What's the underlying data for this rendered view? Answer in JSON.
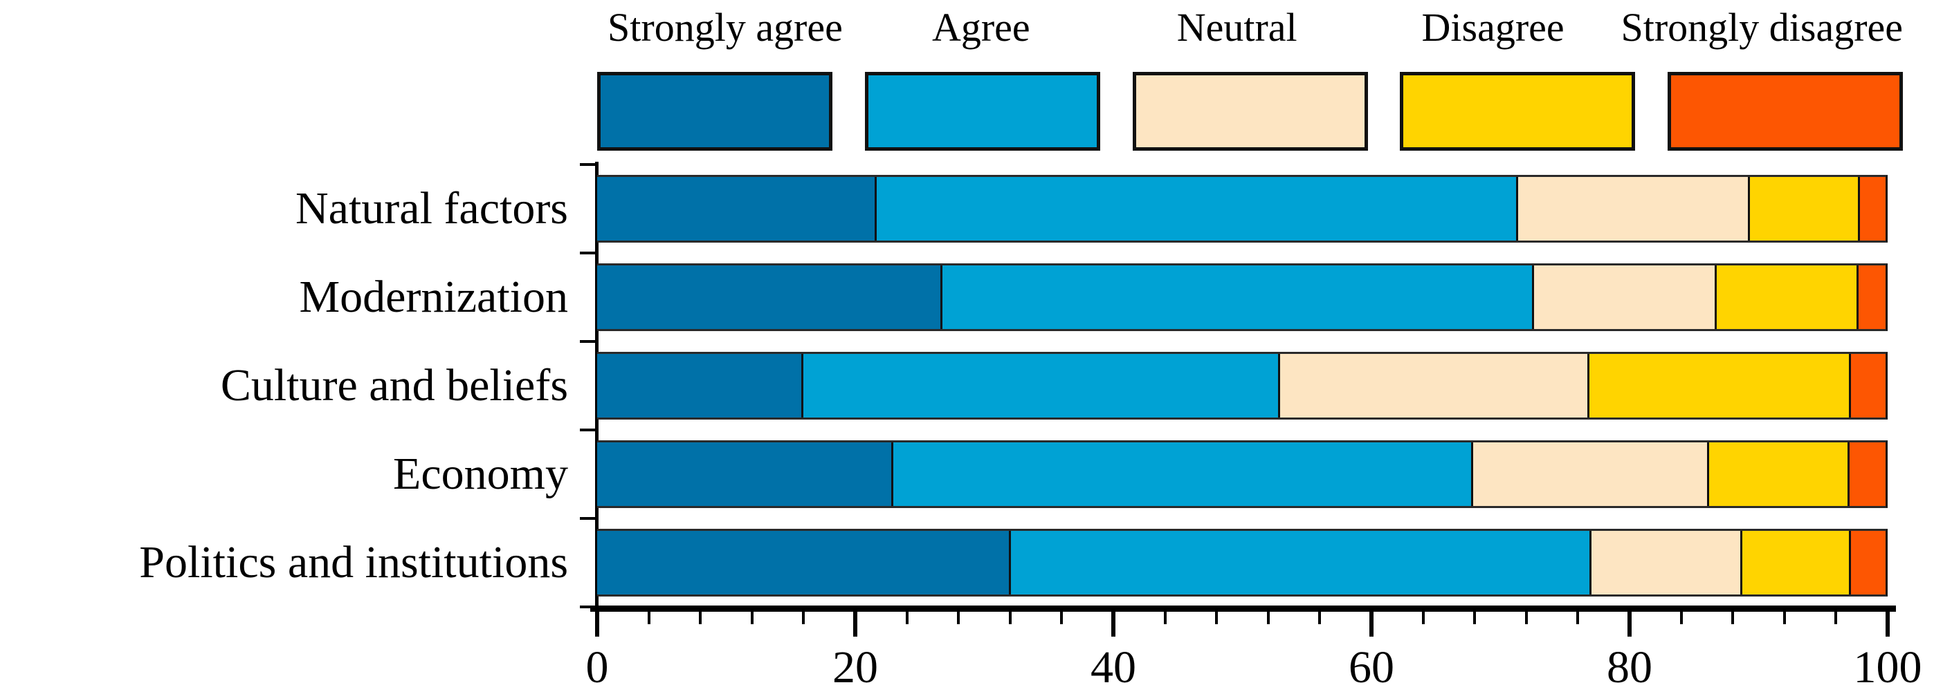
{
  "chart_data": {
    "type": "bar",
    "orientation": "horizontal",
    "stacked": true,
    "title": "",
    "xlabel": "",
    "ylabel": "",
    "xlim": [
      0,
      100
    ],
    "x_ticks": [
      0,
      20,
      40,
      60,
      80,
      100
    ],
    "x_minor_step": 4,
    "grid": false,
    "legend_position": "top",
    "categories": [
      "Natural factors",
      "Modernization",
      "Culture and beliefs",
      "Economy",
      "Politics and institutions"
    ],
    "series": [
      {
        "name": "Strongly agree",
        "color": "#0071a8",
        "values": [
          21.7,
          26.8,
          16.0,
          23.0,
          32.1
        ]
      },
      {
        "name": "Agree",
        "color": "#00a2d4",
        "values": [
          49.8,
          45.9,
          37.0,
          45.0,
          45.1
        ]
      },
      {
        "name": "Neutral",
        "color": "#fde5c2",
        "values": [
          18.0,
          14.2,
          24.0,
          18.3,
          11.7
        ]
      },
      {
        "name": "Disagree",
        "color": "#ffd400",
        "values": [
          8.5,
          11.0,
          20.3,
          10.9,
          8.4
        ]
      },
      {
        "name": "Strongly disagree",
        "color": "#fd5602",
        "values": [
          2.0,
          2.1,
          2.7,
          2.8,
          2.7
        ]
      }
    ],
    "axis_color": "#000000",
    "bar_border_color": "#111111"
  }
}
